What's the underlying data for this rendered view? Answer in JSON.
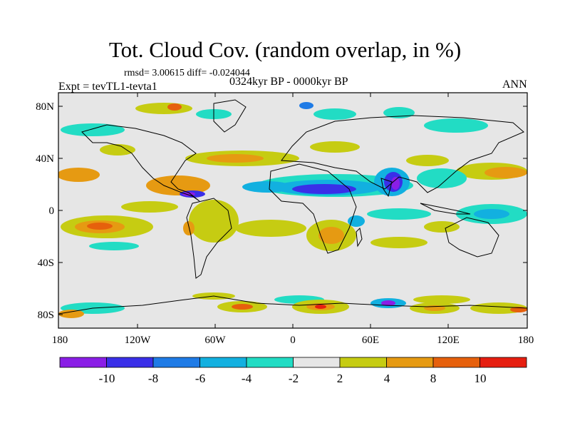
{
  "header": {
    "title": "Tot. Cloud Cov. (random overlap, in %)",
    "stats": "rmsd= 3.00615 diff= -0.024044",
    "experiment": "Expt = tevTL1-tevta1",
    "period": "0324kyr BP - 0000kyr BP",
    "season": "ANN"
  },
  "axes": {
    "lat_labels": [
      "80N",
      "40N",
      "0",
      "40S",
      "80S"
    ],
    "lon_labels": [
      "180",
      "120W",
      "60W",
      "0",
      "60E",
      "120E",
      "180"
    ]
  },
  "colorbar": {
    "labels": [
      "-10",
      "-8",
      "-6",
      "-4",
      "-2",
      "2",
      "4",
      "8",
      "10"
    ],
    "colors": [
      "#8a1ee6",
      "#3a2fe8",
      "#1f7be6",
      "#12b0e0",
      "#22dcc4",
      "#e6e6e6",
      "#c6cc12",
      "#e69a12",
      "#e6600c",
      "#e61e10"
    ]
  },
  "map": {
    "background_color": "#e6e6e6",
    "coastline_color": "#000000"
  }
}
